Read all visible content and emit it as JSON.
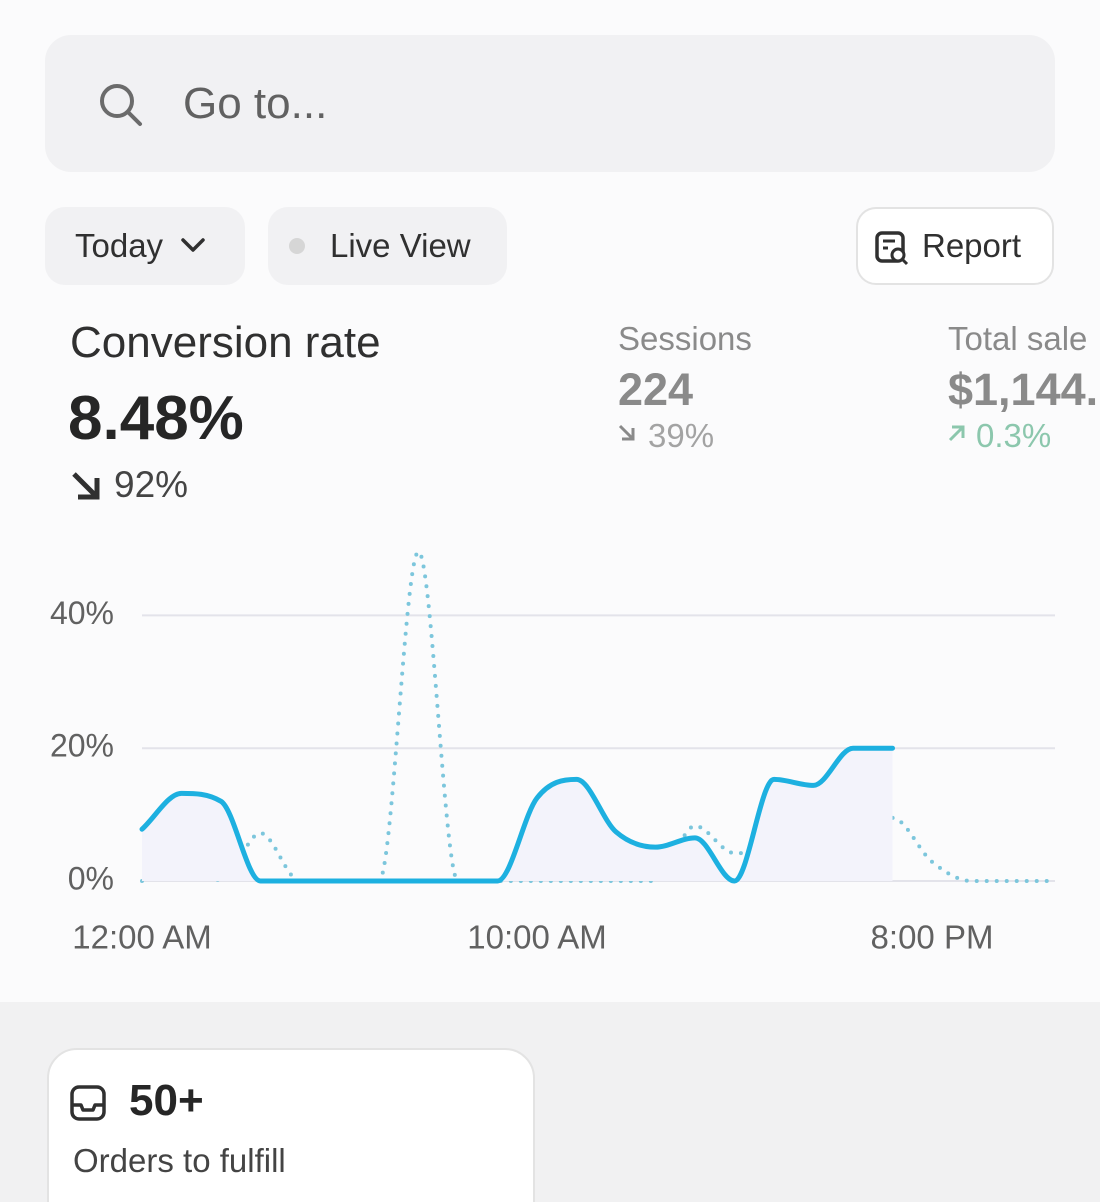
{
  "search": {
    "placeholder": "Go to..."
  },
  "toolbar": {
    "date_range": "Today",
    "live_view": "Live View",
    "report": "Report"
  },
  "metrics": [
    {
      "label": "Conversion rate",
      "value": "8.48%",
      "change": "92%"
    },
    {
      "label": "Sessions",
      "value": "224",
      "change": "39%"
    },
    {
      "label": "Total sale",
      "value": "$1,144.",
      "change": "0.3%"
    }
  ],
  "chart_data": {
    "type": "line",
    "categories": [
      "12:00 AM",
      null,
      null,
      null,
      null,
      null,
      null,
      null,
      null,
      null,
      "10:00 AM",
      null,
      null,
      null,
      null,
      null,
      null,
      null,
      null,
      null,
      "8:00 PM",
      null,
      null,
      null
    ],
    "series": [
      {
        "color": "#1db0e0",
        "style": "solid",
        "fill": "#f3f3fb",
        "values": [
          7.8,
          13.2,
          12,
          0,
          0,
          0,
          0,
          0,
          0,
          0,
          12.5,
          15.3,
          7.4,
          5.1,
          6.5,
          0,
          15.3,
          14.4,
          20,
          20,
          null,
          null,
          null,
          null
        ]
      },
      {
        "color": "#7cc6dc",
        "style": "dotted",
        "values": [
          0,
          9.6,
          0,
          7.2,
          0,
          0,
          0,
          49.6,
          0,
          0,
          0,
          0,
          0,
          0,
          8.3,
          4.2,
          4.2,
          7.7,
          3.2,
          9.5,
          2.9,
          0,
          0,
          0
        ]
      }
    ],
    "ylim": [
      0,
      50
    ],
    "yticks": [
      {
        "value": 0,
        "label": "0%"
      },
      {
        "value": 20,
        "label": "20%"
      },
      {
        "value": 40,
        "label": "40%"
      }
    ],
    "grid": true
  },
  "card": {
    "count": "50+",
    "label": "Orders to fulfill"
  }
}
